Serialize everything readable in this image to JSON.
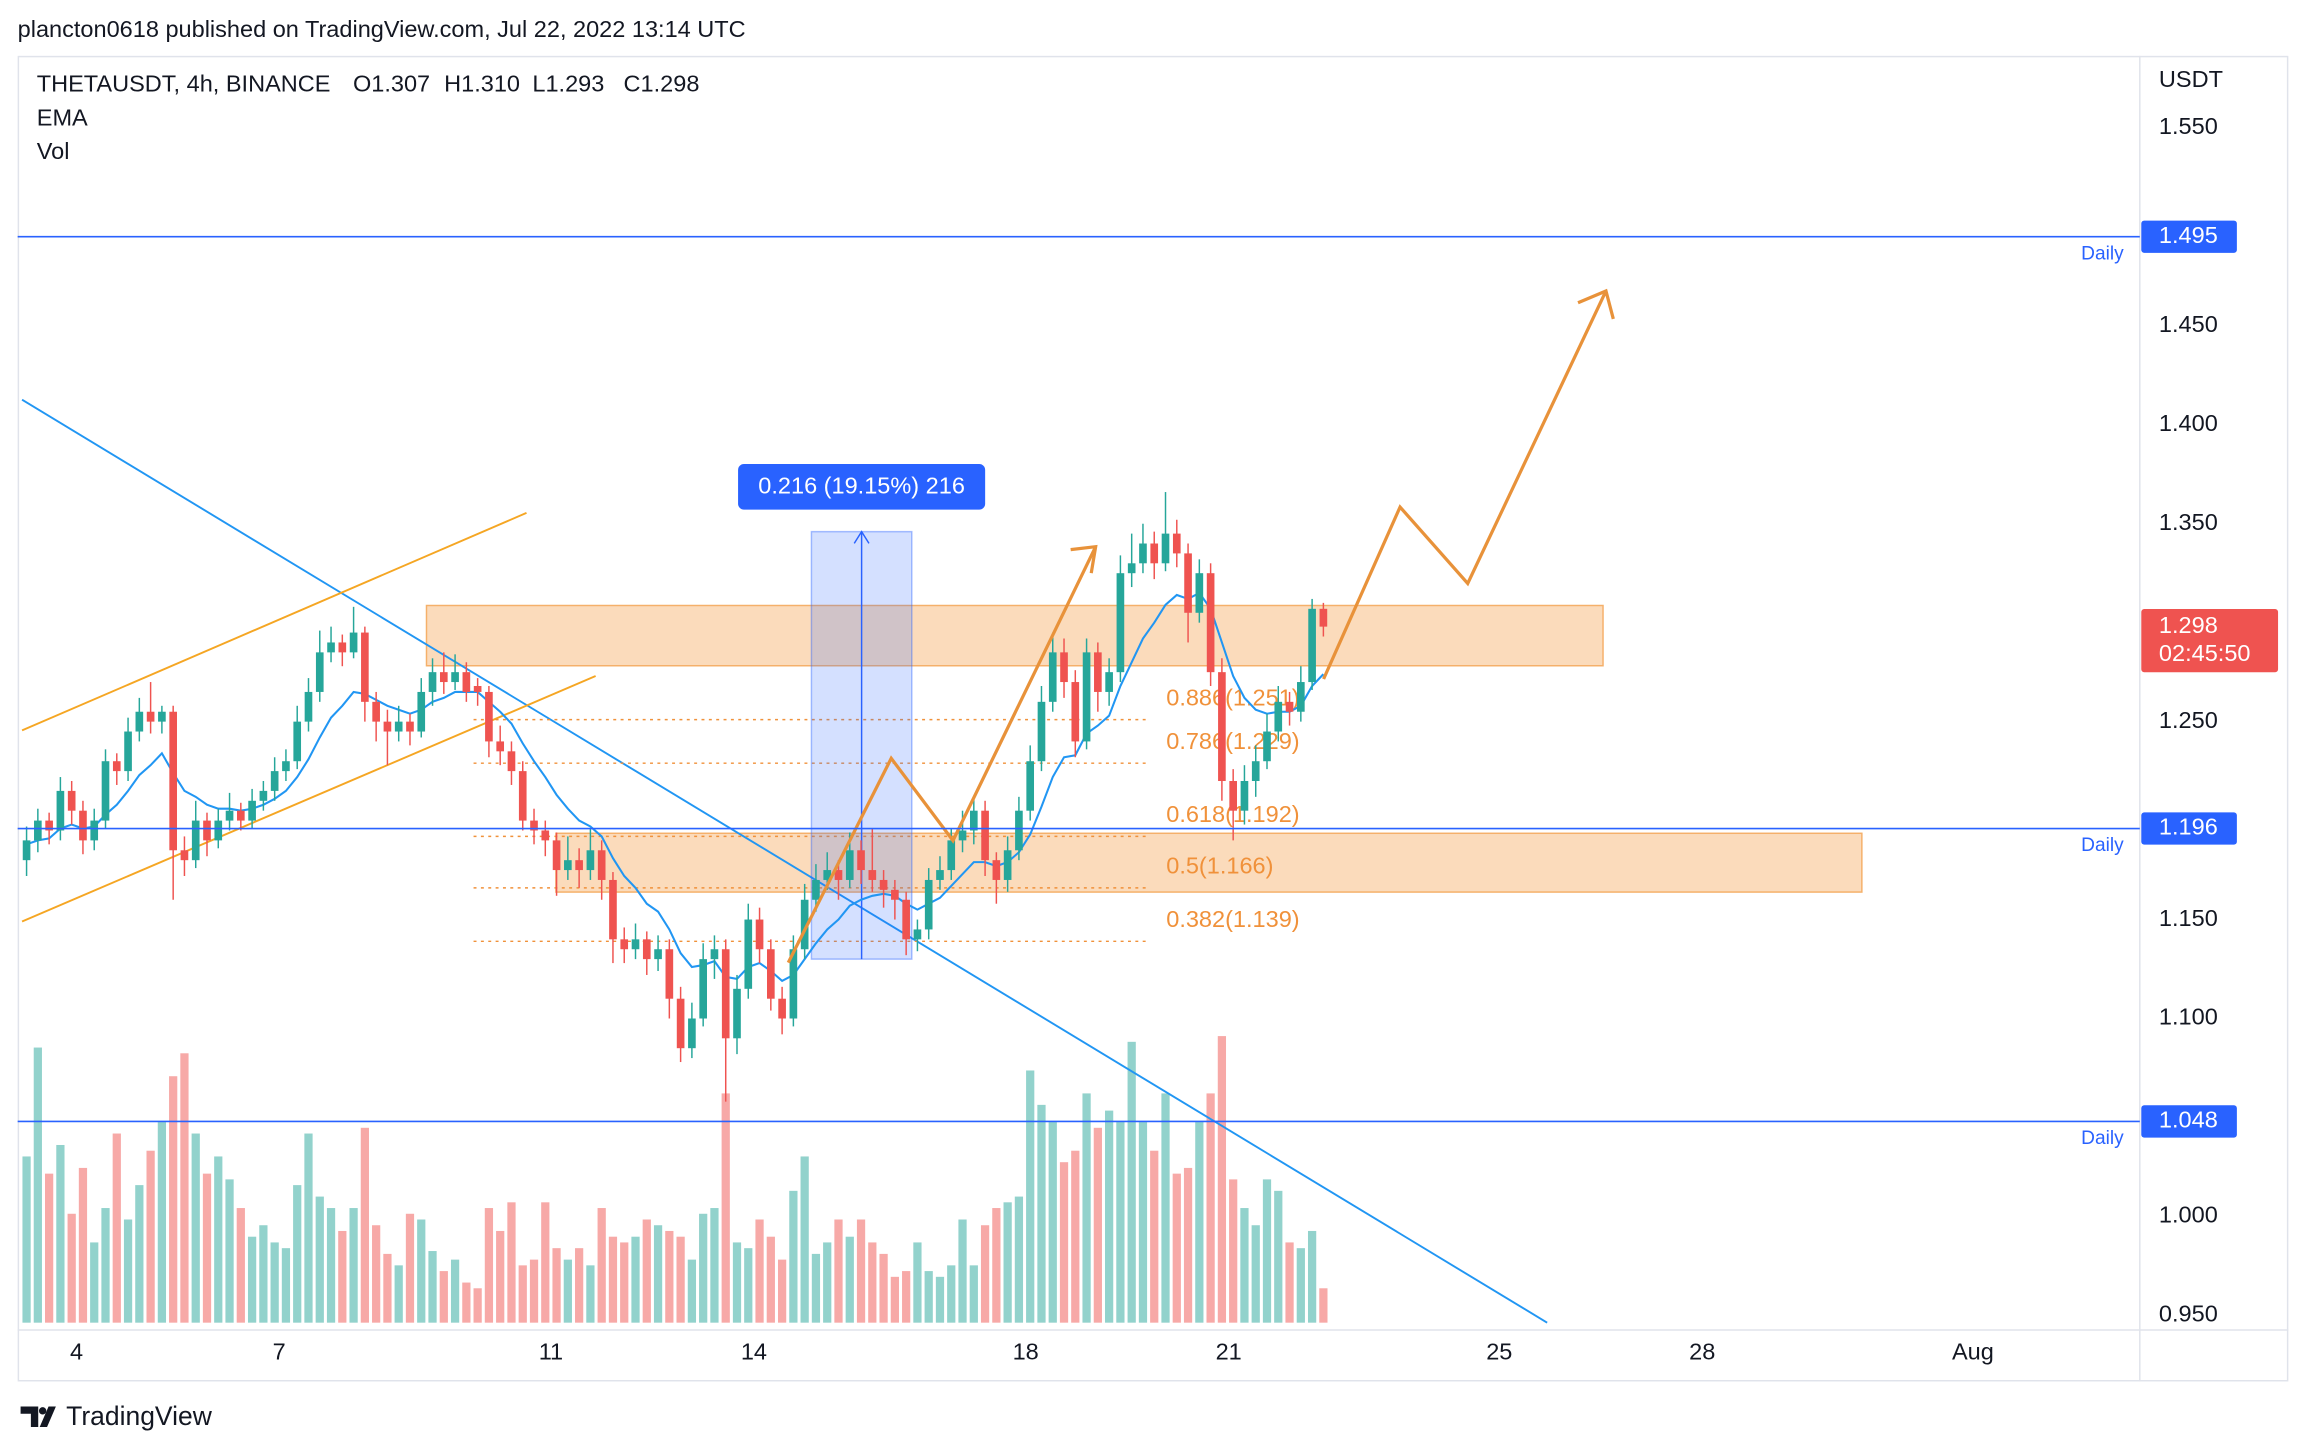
{
  "header": {
    "publisher": "plancton0618 published on TradingView.com, Jul 22, 2022 13:14 UTC",
    "brand": "TradingView"
  },
  "chart_data": {
    "type": "candlestick",
    "title": "THETAUSDT, 4h, BINANCE",
    "ohlc_labels": [
      "O1.307",
      "H1.310",
      "L1.293",
      "C1.298"
    ],
    "indicators": [
      "EMA",
      "Vol"
    ],
    "unit": "USDT",
    "up_color": "#26a69a",
    "down_color": "#ef5350",
    "ema_color": "#2196f3",
    "grid": false,
    "xlim": [
      -0.4,
      187.4
    ],
    "ylim": [
      0.9426,
      1.5864
    ],
    "xticks": [
      {
        "value": 4.43,
        "label": "4"
      },
      {
        "value": 22.4,
        "label": "7"
      },
      {
        "value": 46.5,
        "label": "11"
      },
      {
        "value": 64.5,
        "label": "14"
      },
      {
        "value": 88.6,
        "label": "18"
      },
      {
        "value": 106.6,
        "label": "21"
      },
      {
        "value": 130.6,
        "label": "25"
      },
      {
        "value": 148.6,
        "label": "28"
      },
      {
        "value": 172.6,
        "label": "Aug"
      }
    ],
    "yticks": [
      {
        "value": 0.95,
        "label": "0.950"
      },
      {
        "value": 1.0,
        "label": "1.000"
      },
      {
        "value": 1.05,
        "label": "1.050"
      },
      {
        "value": 1.1,
        "label": "1.100"
      },
      {
        "value": 1.15,
        "label": "1.150"
      },
      {
        "value": 1.2,
        "label": "1.200"
      },
      {
        "value": 1.25,
        "label": "1.250"
      },
      {
        "value": 1.3,
        "label": "1.300"
      },
      {
        "value": 1.35,
        "label": "1.350"
      },
      {
        "value": 1.4,
        "label": "1.400"
      },
      {
        "value": 1.45,
        "label": "1.450"
      },
      {
        "value": 1.5,
        "label": "1.500"
      },
      {
        "value": 1.55,
        "label": "1.550"
      }
    ],
    "hidden_yticks": [
      1.05,
      1.2,
      1.3,
      1.5
    ],
    "candles": [
      [
        1.18,
        1.197,
        1.172,
        1.19
      ],
      [
        1.19,
        1.206,
        1.184,
        1.2
      ],
      [
        1.2,
        1.204,
        1.188,
        1.195
      ],
      [
        1.195,
        1.222,
        1.19,
        1.215
      ],
      [
        1.215,
        1.22,
        1.198,
        1.205
      ],
      [
        1.205,
        1.21,
        1.183,
        1.19
      ],
      [
        1.19,
        1.206,
        1.185,
        1.2
      ],
      [
        1.2,
        1.236,
        1.196,
        1.23
      ],
      [
        1.23,
        1.234,
        1.218,
        1.225
      ],
      [
        1.225,
        1.252,
        1.22,
        1.245
      ],
      [
        1.245,
        1.262,
        1.24,
        1.255
      ],
      [
        1.255,
        1.27,
        1.244,
        1.25
      ],
      [
        1.25,
        1.258,
        1.244,
        1.255
      ],
      [
        1.255,
        1.258,
        1.16,
        1.185
      ],
      [
        1.185,
        1.192,
        1.172,
        1.18
      ],
      [
        1.18,
        1.21,
        1.176,
        1.2
      ],
      [
        1.2,
        1.204,
        1.182,
        1.19
      ],
      [
        1.19,
        1.206,
        1.186,
        1.2
      ],
      [
        1.2,
        1.214,
        1.195,
        1.205
      ],
      [
        1.205,
        1.209,
        1.195,
        1.2
      ],
      [
        1.2,
        1.216,
        1.196,
        1.21
      ],
      [
        1.21,
        1.22,
        1.205,
        1.215
      ],
      [
        1.215,
        1.232,
        1.21,
        1.225
      ],
      [
        1.225,
        1.236,
        1.22,
        1.23
      ],
      [
        1.23,
        1.258,
        1.226,
        1.25
      ],
      [
        1.25,
        1.272,
        1.245,
        1.265
      ],
      [
        1.265,
        1.296,
        1.26,
        1.285
      ],
      [
        1.285,
        1.298,
        1.28,
        1.29
      ],
      [
        1.29,
        1.294,
        1.278,
        1.285
      ],
      [
        1.285,
        1.308,
        1.282,
        1.295
      ],
      [
        1.295,
        1.298,
        1.25,
        1.26
      ],
      [
        1.26,
        1.265,
        1.24,
        1.25
      ],
      [
        1.25,
        1.256,
        1.228,
        1.245
      ],
      [
        1.245,
        1.258,
        1.24,
        1.25
      ],
      [
        1.25,
        1.254,
        1.238,
        1.245
      ],
      [
        1.245,
        1.272,
        1.242,
        1.265
      ],
      [
        1.265,
        1.282,
        1.258,
        1.275
      ],
      [
        1.275,
        1.285,
        1.264,
        1.27
      ],
      [
        1.27,
        1.284,
        1.266,
        1.275
      ],
      [
        1.275,
        1.28,
        1.26,
        1.265
      ],
      [
        1.268,
        1.272,
        1.258,
        1.265
      ],
      [
        1.265,
        1.268,
        1.232,
        1.24
      ],
      [
        1.24,
        1.248,
        1.228,
        1.235
      ],
      [
        1.235,
        1.24,
        1.218,
        1.225
      ],
      [
        1.225,
        1.23,
        1.195,
        1.2
      ],
      [
        1.2,
        1.206,
        1.188,
        1.195
      ],
      [
        1.195,
        1.2,
        1.182,
        1.19
      ],
      [
        1.19,
        1.194,
        1.162,
        1.175
      ],
      [
        1.175,
        1.192,
        1.17,
        1.18
      ],
      [
        1.18,
        1.186,
        1.166,
        1.175
      ],
      [
        1.175,
        1.196,
        1.17,
        1.185
      ],
      [
        1.185,
        1.19,
        1.16,
        1.17
      ],
      [
        1.17,
        1.174,
        1.128,
        1.14
      ],
      [
        1.14,
        1.146,
        1.128,
        1.135
      ],
      [
        1.135,
        1.148,
        1.13,
        1.14
      ],
      [
        1.14,
        1.144,
        1.122,
        1.13
      ],
      [
        1.13,
        1.142,
        1.124,
        1.135
      ],
      [
        1.135,
        1.14,
        1.1,
        1.11
      ],
      [
        1.11,
        1.116,
        1.078,
        1.085
      ],
      [
        1.085,
        1.108,
        1.08,
        1.1
      ],
      [
        1.1,
        1.138,
        1.096,
        1.13
      ],
      [
        1.13,
        1.142,
        1.12,
        1.135
      ],
      [
        1.135,
        1.14,
        1.058,
        1.09
      ],
      [
        1.09,
        1.122,
        1.082,
        1.115
      ],
      [
        1.115,
        1.158,
        1.11,
        1.15
      ],
      [
        1.15,
        1.156,
        1.128,
        1.135
      ],
      [
        1.135,
        1.14,
        1.104,
        1.11
      ],
      [
        1.11,
        1.116,
        1.092,
        1.1
      ],
      [
        1.1,
        1.142,
        1.096,
        1.135
      ],
      [
        1.135,
        1.168,
        1.13,
        1.16
      ],
      [
        1.16,
        1.178,
        1.154,
        1.17
      ],
      [
        1.17,
        1.184,
        1.165,
        1.175
      ],
      [
        1.175,
        1.18,
        1.16,
        1.17
      ],
      [
        1.17,
        1.194,
        1.166,
        1.185
      ],
      [
        1.185,
        1.19,
        1.168,
        1.175
      ],
      [
        1.175,
        1.196,
        1.164,
        1.17
      ],
      [
        1.17,
        1.175,
        1.156,
        1.165
      ],
      [
        1.165,
        1.17,
        1.15,
        1.16
      ],
      [
        1.16,
        1.164,
        1.132,
        1.14
      ],
      [
        1.14,
        1.15,
        1.134,
        1.145
      ],
      [
        1.145,
        1.176,
        1.14,
        1.17
      ],
      [
        1.17,
        1.182,
        1.165,
        1.175
      ],
      [
        1.175,
        1.196,
        1.17,
        1.19
      ],
      [
        1.19,
        1.205,
        1.184,
        1.195
      ],
      [
        1.195,
        1.212,
        1.188,
        1.205
      ],
      [
        1.205,
        1.21,
        1.172,
        1.18
      ],
      [
        1.18,
        1.184,
        1.158,
        1.17
      ],
      [
        1.17,
        1.192,
        1.164,
        1.185
      ],
      [
        1.185,
        1.212,
        1.18,
        1.205
      ],
      [
        1.205,
        1.238,
        1.2,
        1.23
      ],
      [
        1.23,
        1.268,
        1.225,
        1.26
      ],
      [
        1.26,
        1.295,
        1.255,
        1.285
      ],
      [
        1.285,
        1.292,
        1.262,
        1.27
      ],
      [
        1.27,
        1.276,
        1.232,
        1.24
      ],
      [
        1.24,
        1.292,
        1.236,
        1.285
      ],
      [
        1.285,
        1.29,
        1.255,
        1.265
      ],
      [
        1.265,
        1.282,
        1.258,
        1.275
      ],
      [
        1.275,
        1.334,
        1.27,
        1.325
      ],
      [
        1.325,
        1.345,
        1.318,
        1.33
      ],
      [
        1.33,
        1.35,
        1.325,
        1.34
      ],
      [
        1.34,
        1.346,
        1.322,
        1.33
      ],
      [
        1.33,
        1.366,
        1.326,
        1.345
      ],
      [
        1.345,
        1.352,
        1.328,
        1.335
      ],
      [
        1.335,
        1.34,
        1.29,
        1.305
      ],
      [
        1.305,
        1.332,
        1.3,
        1.325
      ],
      [
        1.325,
        1.33,
        1.268,
        1.275
      ],
      [
        1.275,
        1.282,
        1.21,
        1.22
      ],
      [
        1.22,
        1.226,
        1.19,
        1.205
      ],
      [
        1.205,
        1.228,
        1.198,
        1.22
      ],
      [
        1.22,
        1.238,
        1.212,
        1.23
      ],
      [
        1.23,
        1.254,
        1.226,
        1.245
      ],
      [
        1.245,
        1.268,
        1.24,
        1.26
      ],
      [
        1.26,
        1.265,
        1.248,
        1.255
      ],
      [
        1.255,
        1.278,
        1.25,
        1.27
      ],
      [
        1.27,
        1.312,
        1.266,
        1.307
      ],
      [
        1.307,
        1.31,
        1.293,
        1.298
      ]
    ],
    "volume": [
      58,
      96,
      52,
      62,
      38,
      54,
      28,
      40,
      66,
      36,
      48,
      60,
      70,
      86,
      94,
      66,
      52,
      58,
      50,
      40,
      30,
      34,
      28,
      26,
      48,
      66,
      44,
      40,
      32,
      40,
      68,
      34,
      24,
      20,
      38,
      36,
      25,
      18,
      22,
      14,
      12,
      40,
      32,
      42,
      20,
      22,
      42,
      26,
      22,
      26,
      20,
      40,
      30,
      28,
      30,
      36,
      34,
      32,
      30,
      22,
      38,
      40,
      80,
      28,
      26,
      36,
      30,
      22,
      46,
      58,
      24,
      28,
      36,
      30,
      36,
      28,
      24,
      16,
      18,
      28,
      18,
      16,
      20,
      36,
      20,
      34,
      40,
      42,
      44,
      88,
      76,
      70,
      56,
      60,
      80,
      68,
      74,
      70,
      98,
      70,
      60,
      80,
      52,
      54,
      70,
      80,
      100,
      50,
      40,
      34,
      50,
      46,
      28,
      26,
      32,
      12
    ],
    "ema": [
      1.188,
      1.19,
      1.191,
      1.196,
      1.198,
      1.196,
      1.197,
      1.203,
      1.208,
      1.215,
      1.223,
      1.228,
      1.234,
      1.224,
      1.215,
      1.212,
      1.208,
      1.206,
      1.206,
      1.205,
      1.206,
      1.208,
      1.211,
      1.215,
      1.222,
      1.231,
      1.242,
      1.252,
      1.258,
      1.265,
      1.264,
      1.261,
      1.258,
      1.256,
      1.254,
      1.256,
      1.26,
      1.262,
      1.265,
      1.265,
      1.265,
      1.26,
      1.255,
      1.249,
      1.239,
      1.23,
      1.222,
      1.213,
      1.206,
      1.2,
      1.197,
      1.192,
      1.181,
      1.172,
      1.166,
      1.158,
      1.154,
      1.145,
      1.133,
      1.126,
      1.127,
      1.129,
      1.121,
      1.12,
      1.126,
      1.128,
      1.124,
      1.119,
      1.122,
      1.13,
      1.138,
      1.145,
      1.15,
      1.157,
      1.16,
      1.162,
      1.163,
      1.162,
      1.158,
      1.155,
      1.158,
      1.161,
      1.167,
      1.173,
      1.179,
      1.179,
      1.177,
      1.179,
      1.184,
      1.193,
      1.207,
      1.222,
      1.232,
      1.233,
      1.244,
      1.248,
      1.253,
      1.268,
      1.28,
      1.292,
      1.3,
      1.309,
      1.314,
      1.312,
      1.315,
      1.307,
      1.29,
      1.273,
      1.262,
      1.256,
      1.254,
      1.255,
      1.255,
      1.258,
      1.268,
      1.274
    ],
    "levels": [
      {
        "value": 1.495,
        "label": "1.495",
        "text": "Daily"
      },
      {
        "value": 1.196,
        "label": "1.196",
        "text": "Daily"
      },
      {
        "value": 1.048,
        "label": "1.048",
        "text": "Daily"
      }
    ],
    "current": {
      "value": 1.298,
      "label": "1.298",
      "countdown": "02:45:50"
    },
    "fib": [
      {
        "value": 1.251,
        "label": "0.886(1.251)"
      },
      {
        "value": 1.229,
        "label": "0.786(1.229)"
      },
      {
        "value": 1.192,
        "label": "0.618(1.192)"
      },
      {
        "value": 1.166,
        "label": "0.5(1.166)"
      },
      {
        "value": 1.139,
        "label": "0.382(1.139)"
      }
    ],
    "measure": {
      "label": "0.216 (19.15%) 216",
      "low": 1.13,
      "high": 1.346,
      "start": 69.6,
      "end": 78.5
    }
  }
}
